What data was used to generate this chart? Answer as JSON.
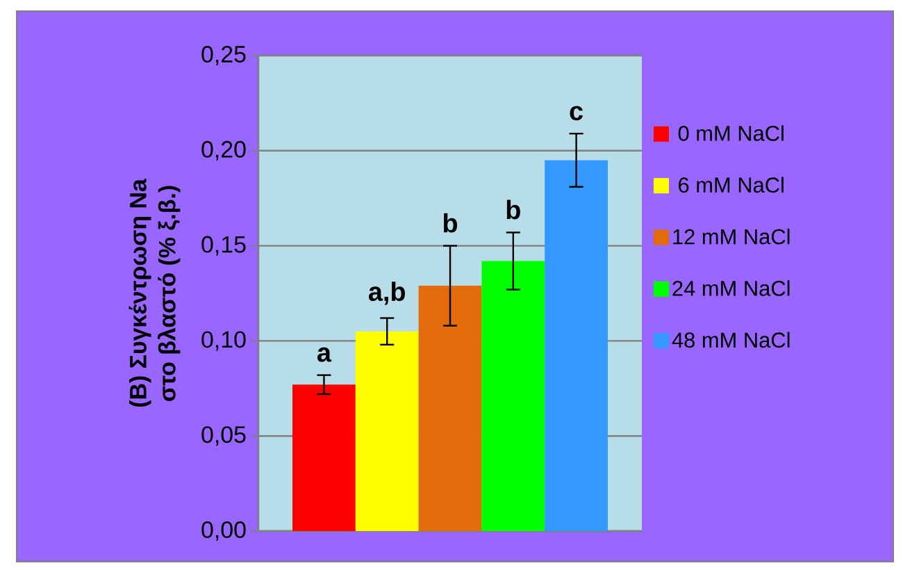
{
  "chart_data": {
    "type": "bar",
    "ylabel": "(Β) Συγκέντρωση Na\nστο βλαστό (% ξ.β.)",
    "categories": [
      null
    ],
    "series": [
      {
        "name": "0 mM NaCl",
        "color": "#ff0000",
        "values": [
          0.077
        ],
        "errors": [
          0.005
        ]
      },
      {
        "name": "6 mM NaCl",
        "color": "#ffff00",
        "values": [
          0.105
        ],
        "errors": [
          0.007
        ]
      },
      {
        "name": "12 mM NaCl",
        "color": "#e36c0a",
        "values": [
          0.129
        ],
        "errors": [
          0.021
        ]
      },
      {
        "name": "24 mM NaCl",
        "color": "#00ff00",
        "values": [
          0.142
        ],
        "errors": [
          0.015
        ]
      },
      {
        "name": "48 mM NaCl",
        "color": "#3399ff",
        "values": [
          0.195
        ],
        "errors": [
          0.014
        ]
      }
    ],
    "ylim": [
      0,
      0.25
    ],
    "yticks": [
      {
        "value": 0,
        "label": "0,00"
      },
      {
        "value": 0.05,
        "label": "0,05"
      },
      {
        "value": 0.1,
        "label": "0,10"
      },
      {
        "value": 0.15,
        "label": "0,15"
      },
      {
        "value": 0.2,
        "label": "0,20"
      },
      {
        "value": 0.25,
        "label": "0,25"
      }
    ],
    "grid": "y",
    "legend": "right",
    "annotations": [
      "a",
      "a,b",
      "b",
      "b",
      "c"
    ]
  }
}
